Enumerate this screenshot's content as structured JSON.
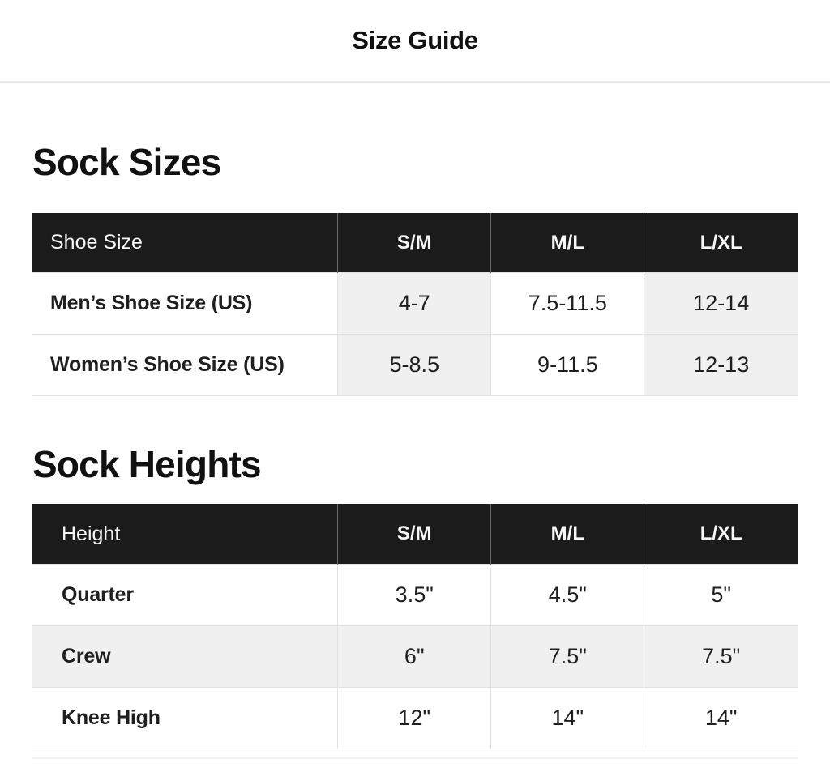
{
  "page": {
    "title": "Size Guide"
  },
  "sock_sizes": {
    "heading": "Sock Sizes",
    "columns": [
      "Shoe Size",
      "S/M",
      "M/L",
      "L/XL"
    ],
    "rows": [
      {
        "label": "Men’s Shoe Size (US)",
        "values": [
          "4-7",
          "7.5-11.5",
          "12-14"
        ]
      },
      {
        "label": "Women’s Shoe Size (US)",
        "values": [
          "5-8.5",
          "9-11.5",
          "12-13"
        ]
      }
    ]
  },
  "sock_heights": {
    "heading": "Sock Heights",
    "columns": [
      "Height",
      "S/M",
      "M/L",
      "L/XL"
    ],
    "rows": [
      {
        "label": "Quarter",
        "values": [
          "3.5\"",
          "4.5\"",
          "5\""
        ]
      },
      {
        "label": "Crew",
        "values": [
          "6\"",
          "7.5\"",
          "7.5\""
        ]
      },
      {
        "label": "Knee High",
        "values": [
          "12\"",
          "14\"",
          "14\""
        ]
      }
    ]
  },
  "colors": {
    "header_bg": "#1b1b1b",
    "header_text": "#f7f7f7",
    "stripe_bg": "#f0f0f0",
    "border": "#e2e2e2",
    "text": "#1f1f1f"
  }
}
